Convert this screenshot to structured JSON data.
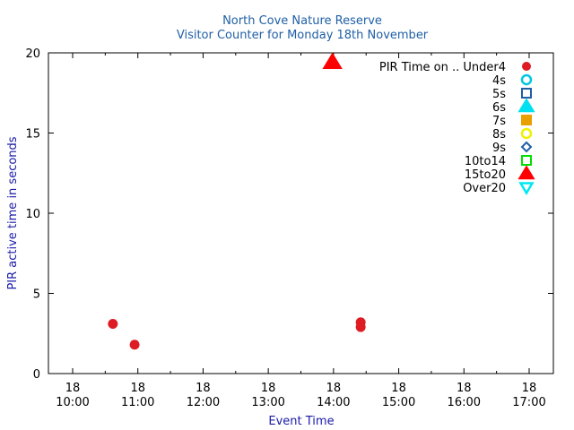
{
  "chart_data": {
    "type": "scatter",
    "title": "North Cove Nature Reserve",
    "subtitle": "Visitor Counter for Monday 18th November",
    "xlabel": "Event Time",
    "ylabel": "PIR active time in seconds",
    "xlim": [
      "18 10:00",
      "18 17:00"
    ],
    "ylim": [
      0,
      20
    ],
    "x_ticks": [
      {
        "day": "18",
        "time": "10:00"
      },
      {
        "day": "18",
        "time": "11:00"
      },
      {
        "day": "18",
        "time": "12:00"
      },
      {
        "day": "18",
        "time": "13:00"
      },
      {
        "day": "18",
        "time": "14:00"
      },
      {
        "day": "18",
        "time": "15:00"
      },
      {
        "day": "18",
        "time": "16:00"
      },
      {
        "day": "18",
        "time": "17:00"
      }
    ],
    "y_ticks": [
      "0",
      "5",
      "10",
      "15",
      "20"
    ],
    "grid": false,
    "legend_position": "top-right",
    "legend_title": "PIR Time on ..",
    "series": [
      {
        "name": "Under4",
        "marker": "filled-circle",
        "color": "#dd1c23",
        "points": [
          {
            "x": "18 10:37",
            "y": 3.1
          },
          {
            "x": "18 10:57",
            "y": 1.8
          },
          {
            "x": "18 14:25",
            "y": 3.2
          },
          {
            "x": "18 14:25",
            "y": 2.9
          }
        ]
      },
      {
        "name": "4s",
        "marker": "open-circle",
        "color": "#00c8e0",
        "points": []
      },
      {
        "name": "5s",
        "marker": "open-square",
        "color": "#1f5fa6",
        "points": []
      },
      {
        "name": "6s",
        "marker": "filled-triangle",
        "color": "#00e0f0",
        "points": []
      },
      {
        "name": "7s",
        "marker": "filled-square",
        "color": "#e8a000",
        "points": []
      },
      {
        "name": "8s",
        "marker": "open-circle",
        "color": "#f0f000",
        "points": []
      },
      {
        "name": "9s",
        "marker": "open-diamond",
        "color": "#1f5fa6",
        "points": []
      },
      {
        "name": "10to14",
        "marker": "open-square",
        "color": "#00e000",
        "points": []
      },
      {
        "name": "15to20",
        "marker": "filled-triangle",
        "color": "#ff0000",
        "points": [
          {
            "x": "18 13:59",
            "y": 19.4
          }
        ]
      },
      {
        "name": "Over20",
        "marker": "open-triangle-down",
        "color": "#00e8f0",
        "points": []
      }
    ]
  }
}
